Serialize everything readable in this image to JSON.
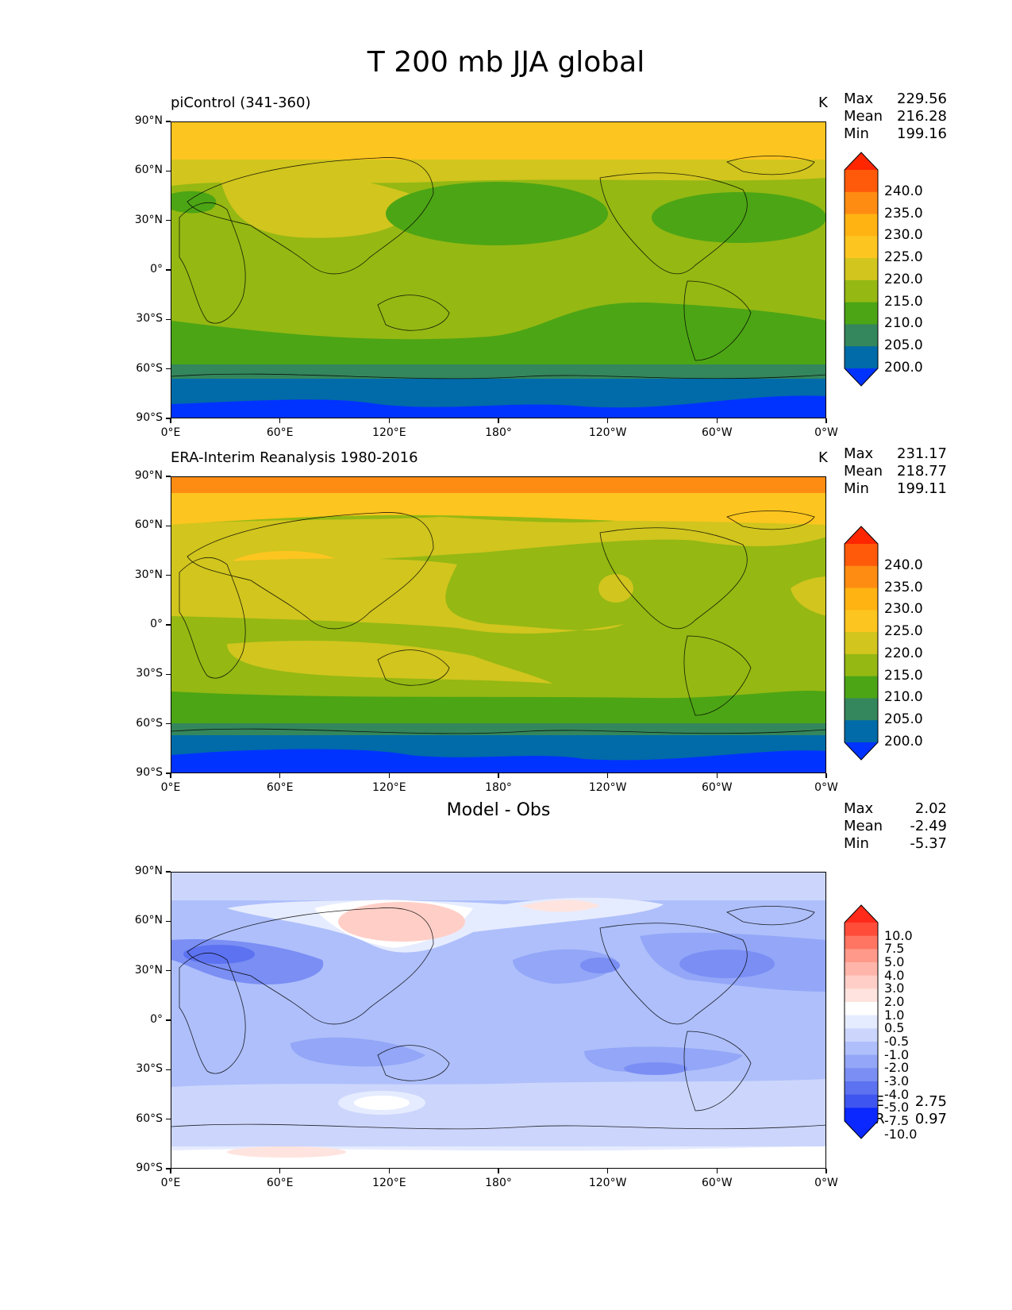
{
  "figure": {
    "title": "T 200 mb JJA global"
  },
  "axes": {
    "y_ticks": [
      "90°N",
      "60°N",
      "30°N",
      "0°",
      "30°S",
      "60°S",
      "90°S"
    ],
    "x_ticks": [
      "0°E",
      "60°E",
      "120°E",
      "180°",
      "120°W",
      "60°W",
      "0°W"
    ]
  },
  "panels": [
    {
      "title": "piControl (341-360)",
      "units": "K",
      "stats": [
        {
          "label": "Max",
          "value": "229.56"
        },
        {
          "label": "Mean",
          "value": "216.28"
        },
        {
          "label": "Min",
          "value": "199.16"
        }
      ],
      "colorbar_labels": [
        "240.0",
        "235.0",
        "230.0",
        "225.0",
        "220.0",
        "215.0",
        "210.0",
        "205.0",
        "200.0"
      ]
    },
    {
      "title": "ERA-Interim Reanalysis 1980-2016",
      "units": "K",
      "stats": [
        {
          "label": "Max",
          "value": "231.17"
        },
        {
          "label": "Mean",
          "value": "218.77"
        },
        {
          "label": "Min",
          "value": "199.11"
        }
      ],
      "colorbar_labels": [
        "240.0",
        "235.0",
        "230.0",
        "225.0",
        "220.0",
        "215.0",
        "210.0",
        "205.0",
        "200.0"
      ]
    },
    {
      "title": "Model - Obs",
      "stats": [
        {
          "label": "Max",
          "value": "2.02"
        },
        {
          "label": "Mean",
          "value": "-2.49"
        },
        {
          "label": "Min",
          "value": "-5.37"
        }
      ],
      "colorbar_labels": [
        "10.0",
        "7.5",
        "5.0",
        "4.0",
        "3.0",
        "2.0",
        "1.0",
        "0.5",
        "-0.5",
        "-1.0",
        "-2.0",
        "-3.0",
        "-4.0",
        "-5.0",
        "-7.5",
        "-10.0"
      ],
      "metrics": [
        {
          "label": "RMSE",
          "value": "2.75"
        },
        {
          "label": "CORR",
          "value": "0.97"
        }
      ]
    }
  ],
  "colors": {
    "abs_levels": [
      "#ff2600",
      "#ff5a0a",
      "#ff8c12",
      "#ffb312",
      "#fdc51f",
      "#d1c51e",
      "#95b813",
      "#4ca515",
      "#34865c",
      "#006ba8",
      "#0033ff"
    ],
    "diff_levels": [
      "#ff2a1a",
      "#ff4d3a",
      "#ff7561",
      "#ff998a",
      "#ffb5aa",
      "#ffcfc7",
      "#ffe3de",
      "#ffffff",
      "#e6ecff",
      "#ccd6fc",
      "#aebffb",
      "#93a6f7",
      "#7a8ef4",
      "#5c72f0",
      "#3f55ef",
      "#0a28ff"
    ]
  },
  "chart_data": [
    {
      "type": "heatmap",
      "title": "piControl (341-360)",
      "units": "K",
      "colorbar_levels": [
        200.0,
        205.0,
        210.0,
        215.0,
        220.0,
        225.0,
        230.0,
        235.0,
        240.0
      ],
      "stats": {
        "max": 229.56,
        "mean": 216.28,
        "min": 199.16
      },
      "x_range": [
        0,
        360
      ],
      "y_range": [
        -90,
        90
      ],
      "zonal_bands": [
        {
          "lat": [
            75,
            90
          ],
          "value": 227.5
        },
        {
          "lat": [
            50,
            75
          ],
          "value": 222.5
        },
        {
          "lat": [
            15,
            50
          ],
          "value": 217.5
        },
        {
          "lat": [
            -35,
            15
          ],
          "value": 217.5
        },
        {
          "lat": [
            -58,
            -35
          ],
          "value": 212.5
        },
        {
          "lat": [
            -65,
            -58
          ],
          "value": 207.5
        },
        {
          "lat": [
            -78,
            -65
          ],
          "value": 202.5
        },
        {
          "lat": [
            -90,
            -78
          ],
          "value": 197.5
        }
      ]
    },
    {
      "type": "heatmap",
      "title": "ERA-Interim Reanalysis 1980-2016",
      "units": "K",
      "colorbar_levels": [
        200.0,
        205.0,
        210.0,
        215.0,
        220.0,
        225.0,
        230.0,
        235.0,
        240.0
      ],
      "stats": {
        "max": 231.17,
        "mean": 218.77,
        "min": 199.11
      },
      "x_range": [
        0,
        360
      ],
      "y_range": [
        -90,
        90
      ],
      "zonal_bands": [
        {
          "lat": [
            82,
            90
          ],
          "value": 232.5
        },
        {
          "lat": [
            67,
            82
          ],
          "value": 227.5
        },
        {
          "lat": [
            40,
            67
          ],
          "value": 222.5
        },
        {
          "lat": [
            -12,
            40
          ],
          "value": 217.5
        },
        {
          "lat": [
            -30,
            -12
          ],
          "value": 222.5
        },
        {
          "lat": [
            -48,
            -30
          ],
          "value": 217.5
        },
        {
          "lat": [
            -62,
            -48
          ],
          "value": 212.5
        },
        {
          "lat": [
            -68,
            -62
          ],
          "value": 207.5
        },
        {
          "lat": [
            -82,
            -68
          ],
          "value": 202.5
        },
        {
          "lat": [
            -90,
            -82
          ],
          "value": 197.5
        }
      ]
    },
    {
      "type": "heatmap",
      "title": "Model - Obs",
      "colorbar_levels": [
        -10.0,
        -7.5,
        -5.0,
        -4.0,
        -3.0,
        -2.0,
        -1.0,
        -0.5,
        0.5,
        1.0,
        2.0,
        3.0,
        4.0,
        5.0,
        7.5,
        10.0
      ],
      "stats": {
        "max": 2.02,
        "mean": -2.49,
        "min": -5.37,
        "rmse": 2.75,
        "corr": 0.97
      },
      "x_range": [
        0,
        360
      ],
      "y_range": [
        -90,
        90
      ],
      "zonal_bands": [
        {
          "lat": [
            75,
            90
          ],
          "value": -1.5
        },
        {
          "lat": [
            50,
            75
          ],
          "value": -0.5
        },
        {
          "lat": [
            15,
            50
          ],
          "value": -3.5
        },
        {
          "lat": [
            -35,
            15
          ],
          "value": -2.5
        },
        {
          "lat": [
            -58,
            -35
          ],
          "value": -1.0
        },
        {
          "lat": [
            -75,
            -58
          ],
          "value": -1.5
        },
        {
          "lat": [
            -90,
            -75
          ],
          "value": 0.0
        }
      ]
    }
  ]
}
